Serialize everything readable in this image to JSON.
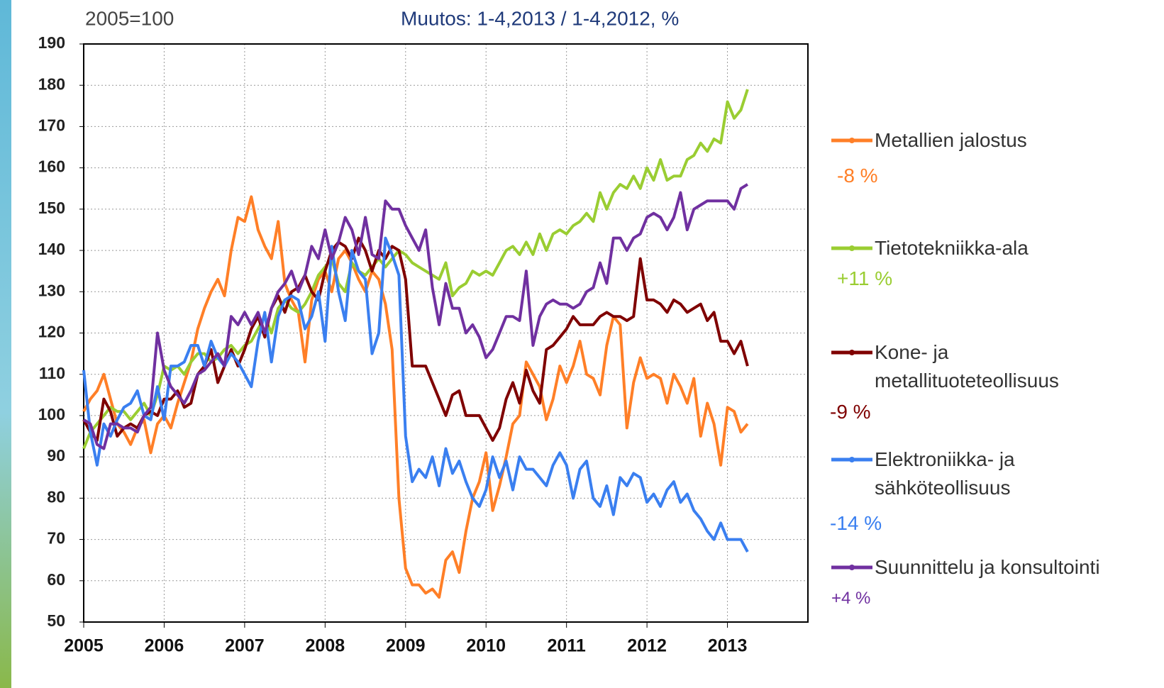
{
  "chart_data": {
    "type": "line",
    "subtitle": "2005=100",
    "title": "Muutos:  1-4,2013 / 1-4,2012, %",
    "x": [
      2005,
      2005.083,
      2005.167,
      2005.25,
      2005.333,
      2005.417,
      2005.5,
      2005.583,
      2005.667,
      2005.75,
      2005.833,
      2005.917,
      2006,
      2006.083,
      2006.167,
      2006.25,
      2006.333,
      2006.417,
      2006.5,
      2006.583,
      2006.667,
      2006.75,
      2006.833,
      2006.917,
      2007,
      2007.083,
      2007.167,
      2007.25,
      2007.333,
      2007.417,
      2007.5,
      2007.583,
      2007.667,
      2007.75,
      2007.833,
      2007.917,
      2008,
      2008.083,
      2008.167,
      2008.25,
      2008.333,
      2008.417,
      2008.5,
      2008.583,
      2008.667,
      2008.75,
      2008.833,
      2008.917,
      2009,
      2009.083,
      2009.167,
      2009.25,
      2009.333,
      2009.417,
      2009.5,
      2009.583,
      2009.667,
      2009.75,
      2009.833,
      2009.917,
      2010,
      2010.083,
      2010.167,
      2010.25,
      2010.333,
      2010.417,
      2010.5,
      2010.583,
      2010.667,
      2010.75,
      2010.833,
      2010.917,
      2011,
      2011.083,
      2011.167,
      2011.25,
      2011.333,
      2011.417,
      2011.5,
      2011.583,
      2011.667,
      2011.75,
      2011.833,
      2011.917,
      2012,
      2012.083,
      2012.167,
      2012.25,
      2012.333,
      2012.417,
      2012.5,
      2012.583,
      2012.667,
      2012.75,
      2012.833,
      2012.917,
      2013,
      2013.083,
      2013.167,
      2013.25
    ],
    "series": [
      {
        "name": "Metallien jalostus",
        "annotation": "-8 %",
        "color": "#ff7f27",
        "values": [
          101,
          104,
          106,
          110,
          104,
          98,
          96,
          93,
          97,
          99,
          91,
          98,
          100,
          97,
          103,
          108,
          113,
          121,
          126,
          130,
          133,
          129,
          140,
          148,
          147,
          153,
          145,
          141,
          138,
          147,
          132,
          128,
          125,
          113,
          128,
          133,
          135,
          130,
          138,
          140,
          137,
          133,
          130,
          135,
          133,
          127,
          116,
          80,
          63,
          59,
          59,
          57,
          58,
          56,
          65,
          67,
          62,
          72,
          80,
          84,
          91,
          77,
          83,
          90,
          98,
          100,
          113,
          110,
          107,
          99,
          104,
          112,
          108,
          112,
          118,
          110,
          109,
          105,
          117,
          124,
          122,
          97,
          108,
          114,
          109,
          110,
          109,
          103,
          110,
          107,
          103,
          109,
          95,
          103,
          98,
          88,
          102,
          101,
          96,
          98
        ]
      },
      {
        "name": "Tietotekniikka-ala",
        "annotation": "+11 %",
        "color": "#9acd32",
        "values": [
          92,
          96,
          98,
          100,
          102,
          101,
          101,
          99,
          101,
          103,
          100,
          105,
          112,
          111,
          112,
          110,
          113,
          115,
          115,
          113,
          114,
          116,
          117,
          115,
          117,
          118,
          121,
          124,
          120,
          126,
          128,
          126,
          125,
          127,
          130,
          134,
          136,
          138,
          132,
          130,
          137,
          135,
          134,
          136,
          138,
          136,
          138,
          140,
          139,
          137,
          136,
          135,
          134,
          133,
          137,
          129,
          131,
          132,
          135,
          134,
          135,
          134,
          137,
          140,
          141,
          139,
          142,
          139,
          144,
          140,
          144,
          145,
          144,
          146,
          147,
          149,
          147,
          154,
          150,
          154,
          156,
          155,
          158,
          155,
          160,
          157,
          162,
          157,
          158,
          158,
          162,
          163,
          166,
          164,
          167,
          166,
          176,
          172,
          174,
          179
        ]
      },
      {
        "name": "Kone- ja metallituoteteollisuus",
        "annotation": "-9 %",
        "color": "#7f0000",
        "values": [
          99,
          96,
          94,
          104,
          101,
          95,
          97,
          98,
          97,
          100,
          101,
          100,
          104,
          104,
          106,
          102,
          103,
          110,
          112,
          116,
          108,
          112,
          116,
          112,
          116,
          121,
          124,
          119,
          126,
          129,
          125,
          130,
          131,
          134,
          130,
          128,
          135,
          140,
          142,
          141,
          138,
          143,
          140,
          135,
          140,
          138,
          141,
          140,
          133,
          112,
          112,
          112,
          108,
          104,
          100,
          105,
          106,
          100,
          100,
          100,
          97,
          94,
          97,
          104,
          108,
          103,
          111,
          106,
          103,
          116,
          117,
          119,
          121,
          124,
          122,
          122,
          122,
          124,
          125,
          124,
          124,
          123,
          124,
          138,
          128,
          128,
          127,
          125,
          128,
          127,
          125,
          126,
          127,
          123,
          125,
          118,
          118,
          115,
          118,
          112
        ]
      },
      {
        "name": "Elektroniikka- ja sähköteollisuus",
        "annotation": "-14 %",
        "color": "#3a7ff0",
        "values": [
          111,
          96,
          88,
          98,
          95,
          99,
          102,
          103,
          106,
          100,
          99,
          107,
          99,
          112,
          112,
          113,
          117,
          117,
          112,
          118,
          114,
          112,
          115,
          113,
          110,
          107,
          118,
          125,
          113,
          124,
          128,
          129,
          128,
          121,
          124,
          130,
          118,
          141,
          130,
          123,
          140,
          135,
          133,
          115,
          120,
          143,
          139,
          134,
          95,
          84,
          87,
          85,
          90,
          83,
          92,
          86,
          89,
          84,
          80,
          78,
          82,
          90,
          85,
          89,
          82,
          90,
          87,
          87,
          85,
          83,
          88,
          91,
          88,
          80,
          87,
          89,
          80,
          78,
          83,
          76,
          85,
          83,
          86,
          85,
          79,
          81,
          78,
          82,
          84,
          79,
          81,
          77,
          75,
          72,
          70,
          74,
          70,
          70,
          70,
          67
        ]
      },
      {
        "name": "Suunnittelu ja konsultointi",
        "annotation": "+4 %",
        "color": "#7030a0",
        "values": [
          99,
          98,
          93,
          92,
          98,
          98,
          97,
          97,
          96,
          100,
          102,
          120,
          111,
          107,
          105,
          103,
          106,
          110,
          111,
          113,
          115,
          112,
          124,
          122,
          125,
          122,
          125,
          120,
          126,
          130,
          132,
          135,
          130,
          134,
          141,
          138,
          145,
          138,
          142,
          148,
          145,
          139,
          148,
          139,
          138,
          152,
          150,
          150,
          146,
          143,
          140,
          145,
          131,
          122,
          132,
          126,
          126,
          120,
          122,
          119,
          114,
          116,
          120,
          124,
          124,
          123,
          135,
          117,
          124,
          127,
          128,
          127,
          127,
          126,
          127,
          130,
          131,
          137,
          132,
          143,
          143,
          140,
          143,
          144,
          148,
          149,
          148,
          145,
          148,
          154,
          145,
          150,
          151,
          152,
          152,
          152,
          152,
          150,
          155,
          156
        ]
      }
    ],
    "xlim": [
      2005,
      2014
    ],
    "xticks": [
      2005,
      2006,
      2007,
      2008,
      2009,
      2010,
      2011,
      2012,
      2013
    ],
    "ylim": [
      50,
      190
    ],
    "yticks": [
      50,
      60,
      70,
      80,
      90,
      100,
      110,
      120,
      130,
      140,
      150,
      160,
      170,
      180,
      190
    ],
    "grid": true
  }
}
